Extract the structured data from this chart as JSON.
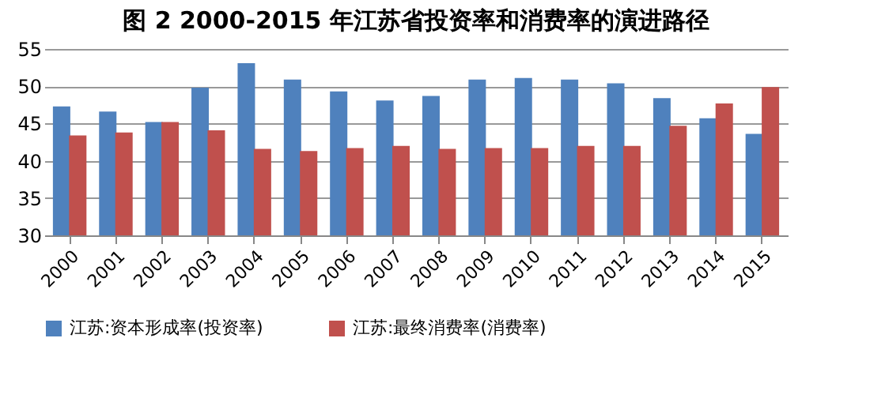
{
  "chart_data": {
    "type": "bar",
    "title": "图 2  2000-2015 年江苏省投资率和消费率的演进路径",
    "categories": [
      "2000",
      "2001",
      "2002",
      "2003",
      "2004",
      "2005",
      "2006",
      "2007",
      "2008",
      "2009",
      "2010",
      "2011",
      "2012",
      "2013",
      "2014",
      "2015"
    ],
    "series": [
      {
        "name": "江苏:资本形成率(投资率)",
        "color": "#4f81bd",
        "values": [
          47.3,
          46.6,
          45.2,
          49.8,
          53.1,
          50.9,
          49.3,
          48.1,
          48.7,
          50.9,
          51.1,
          50.9,
          50.4,
          48.4,
          45.7,
          43.6
        ]
      },
      {
        "name": "江苏:最终消费率(消费率)",
        "color": "#c0504d",
        "values": [
          43.4,
          43.8,
          45.2,
          44.1,
          41.6,
          41.3,
          41.7,
          42.0,
          41.6,
          41.7,
          41.7,
          42.0,
          42.0,
          44.7,
          47.7,
          49.9
        ]
      }
    ],
    "ylim": [
      30,
      55
    ],
    "yticks": [
      30,
      35,
      40,
      45,
      50,
      55
    ],
    "grid": "y",
    "legend": "bottom"
  }
}
